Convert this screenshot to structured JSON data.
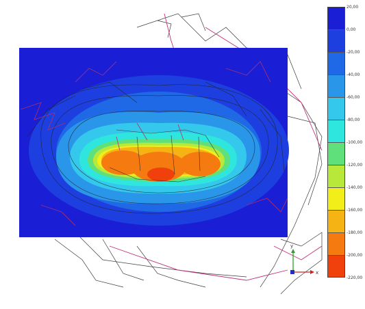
{
  "legend": {
    "levels": [
      {
        "label": "20,00",
        "color": "#1a1fd6"
      },
      {
        "label": "0,00",
        "color": "#1e3fe0"
      },
      {
        "label": "-20,00",
        "color": "#1f68e6"
      },
      {
        "label": "-40,00",
        "color": "#2996ea"
      },
      {
        "label": "-60,00",
        "color": "#34c8ec"
      },
      {
        "label": "-80,00",
        "color": "#2ee6de"
      },
      {
        "label": "-100,00",
        "color": "#5fe07a"
      },
      {
        "label": "-120,00",
        "color": "#b8e83a"
      },
      {
        "label": "-140,00",
        "color": "#f2ee1a"
      },
      {
        "label": "-160,00",
        "color": "#f6b414"
      },
      {
        "label": "-180,00",
        "color": "#f57a10"
      },
      {
        "label": "-200,00",
        "color": "#f0400c"
      },
      {
        "label": "-220,00",
        "color": "#ee1c1c"
      }
    ]
  },
  "axes": {
    "x_label": "x",
    "y_label": "y"
  }
}
